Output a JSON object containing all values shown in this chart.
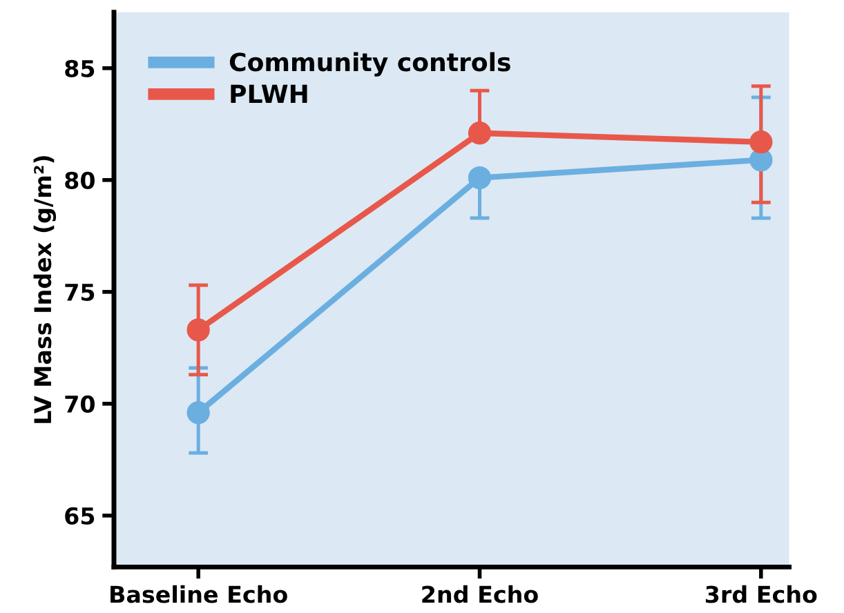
{
  "chart_data": {
    "type": "line",
    "ylabel": "LV Mass Index (g/m²)",
    "categories": [
      "Baseline Echo",
      "2nd Echo",
      "3rd Echo"
    ],
    "series": [
      {
        "name": "Community controls",
        "color": "#6aafe0",
        "values": [
          69.6,
          80.1,
          80.9
        ],
        "errors": [
          [
            67.8,
            71.6
          ],
          [
            78.3,
            80.1
          ],
          [
            78.3,
            83.7
          ]
        ]
      },
      {
        "name": "PLWH",
        "color": "#e8584a",
        "values": [
          73.3,
          82.1,
          81.7
        ],
        "errors": [
          [
            71.3,
            75.3
          ],
          [
            82.1,
            84.0
          ],
          [
            79.0,
            84.2
          ]
        ]
      }
    ],
    "ylim": [
      62.7,
      87.5
    ],
    "yticks": [
      65,
      70,
      75,
      80,
      85
    ],
    "grid": false,
    "legend": "top left",
    "marker": "circle",
    "line_style": "solid"
  }
}
